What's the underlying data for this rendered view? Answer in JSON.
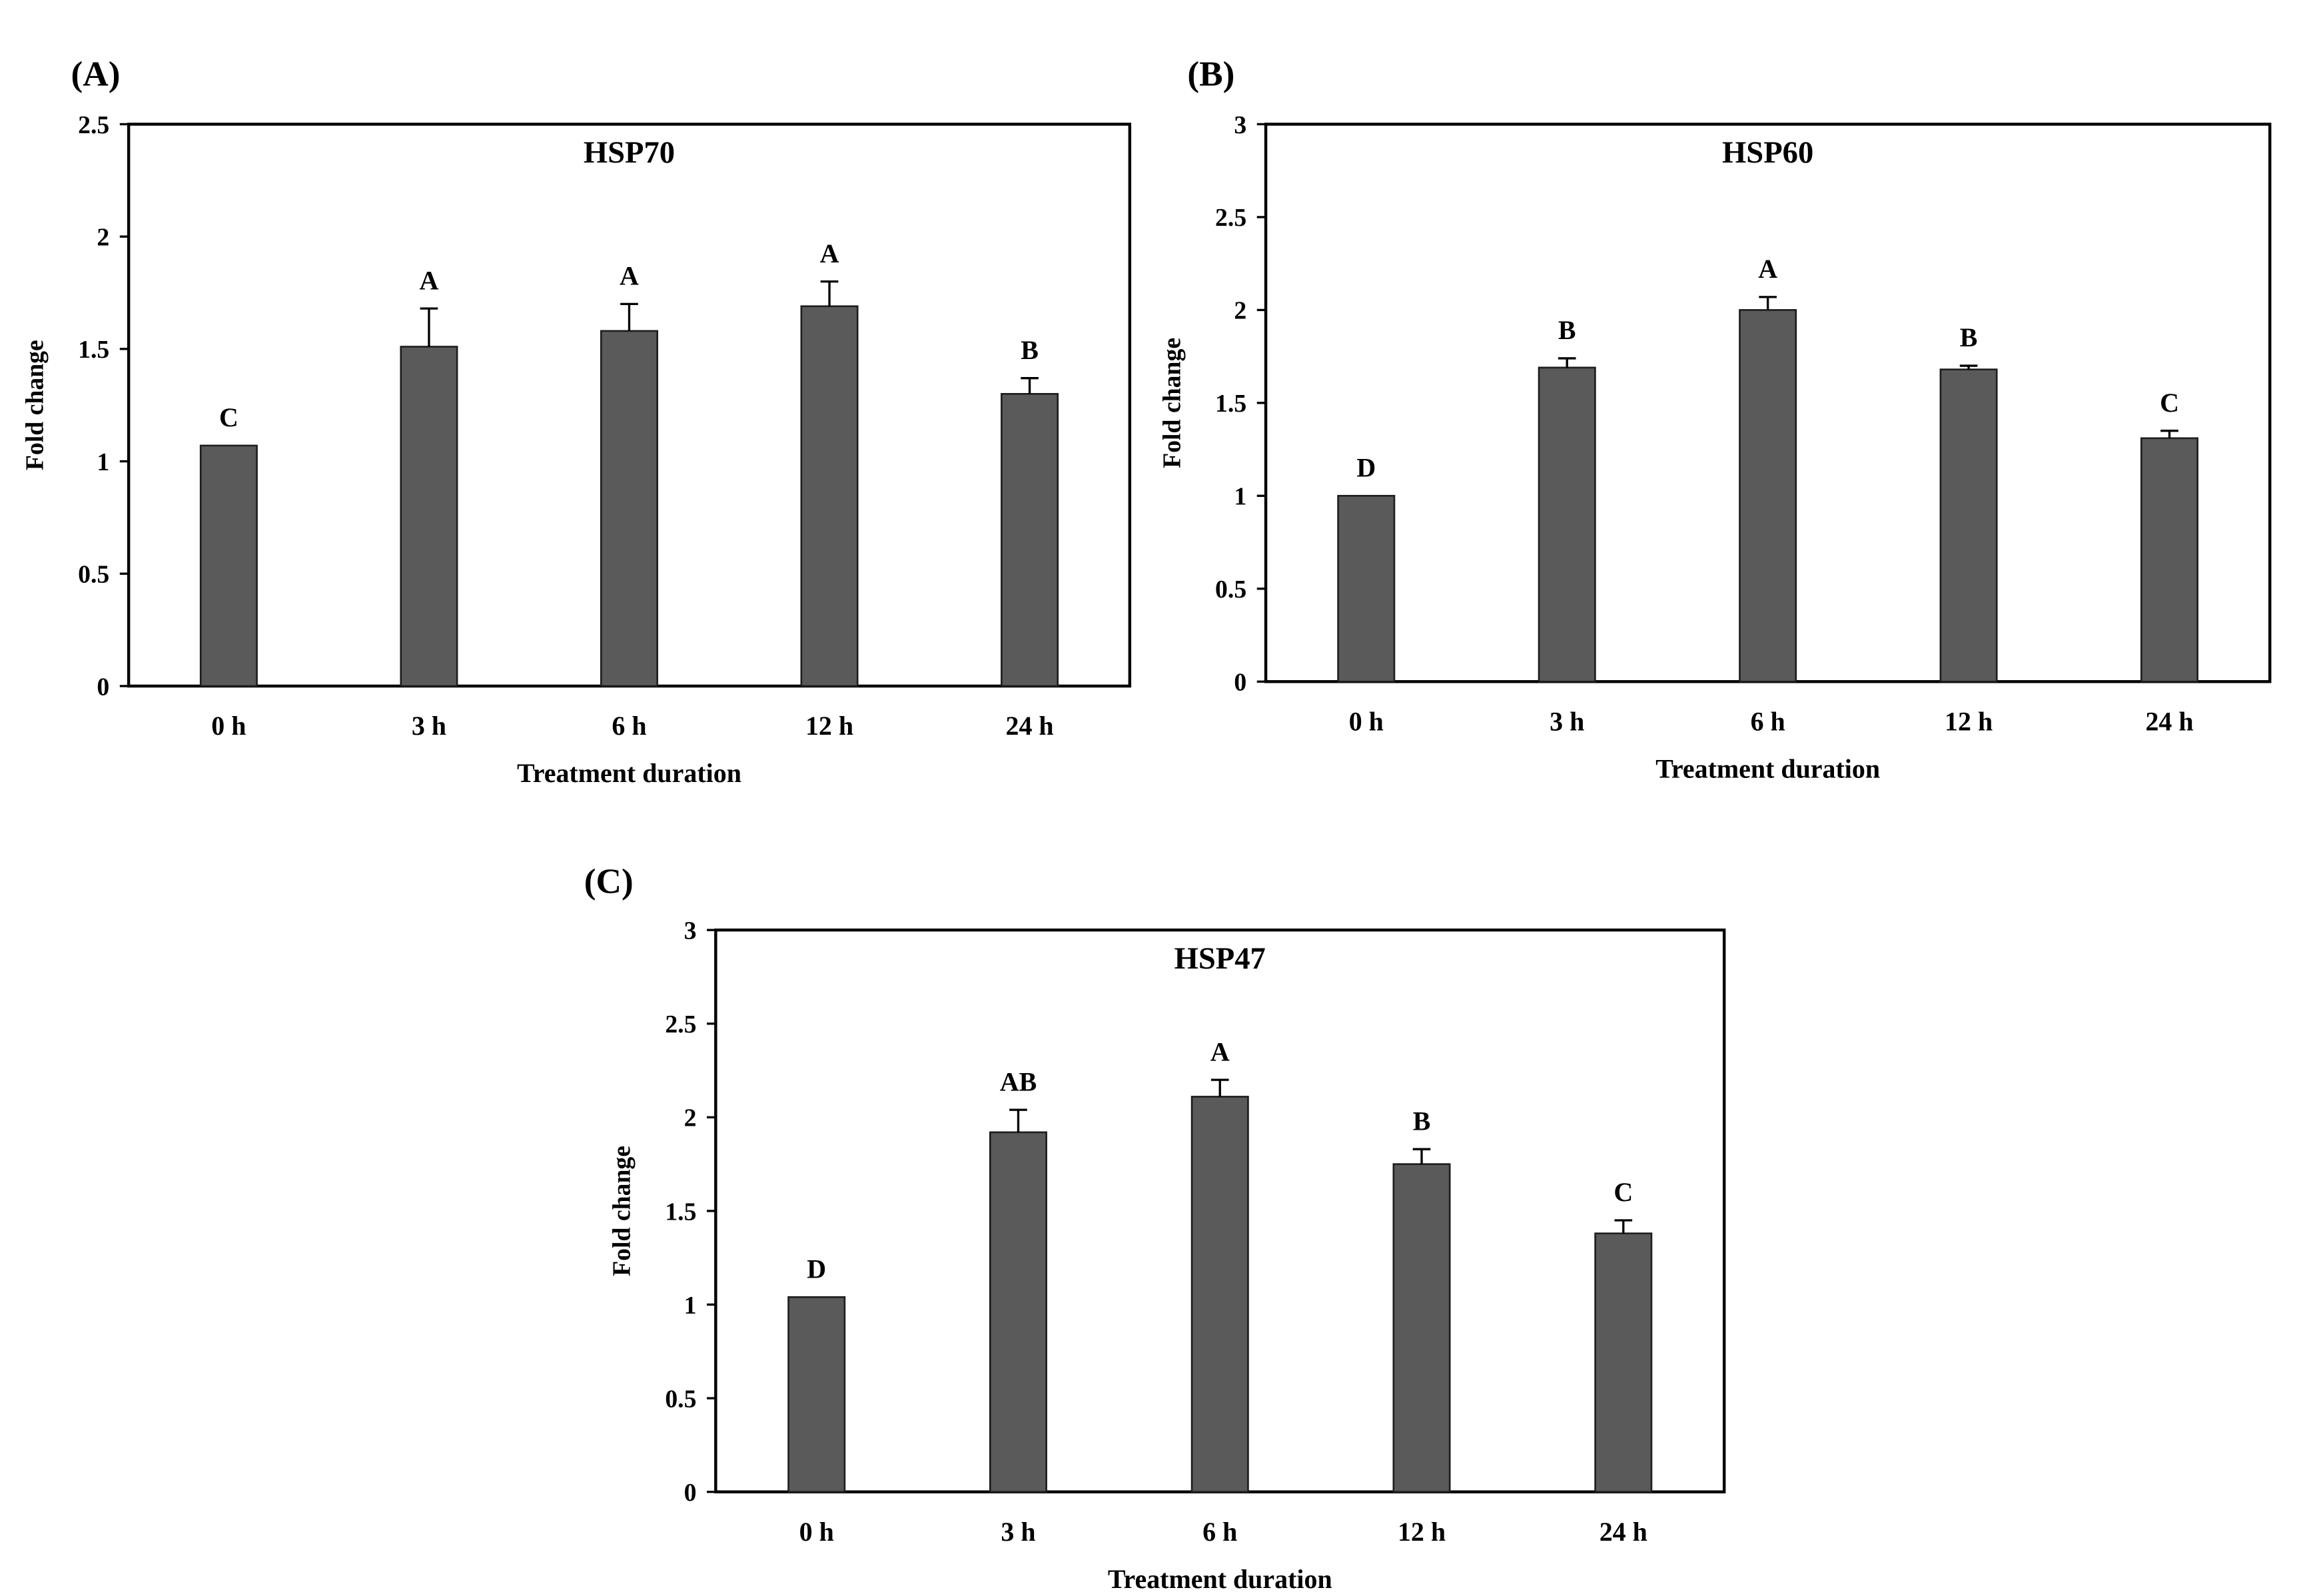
{
  "figure": {
    "bar_color": "#5a5a5a",
    "axis_color": "#000000",
    "background": "#ffffff"
  },
  "chart_data": [
    {
      "panel": "(A)",
      "type": "bar",
      "title": "HSP70",
      "categories": [
        "0 h",
        "3 h",
        "6 h",
        "12 h",
        "24 h"
      ],
      "values": [
        1.07,
        1.51,
        1.58,
        1.69,
        1.3
      ],
      "errors": [
        0.0,
        0.17,
        0.12,
        0.11,
        0.07
      ],
      "letters": [
        "C",
        "A",
        "A",
        "A",
        "B"
      ],
      "xlabel": "Treatment duration",
      "ylabel": "Fold change",
      "ylim": [
        0,
        2.5
      ],
      "yticks": [
        0,
        0.5,
        1,
        1.5,
        2,
        2.5
      ],
      "ytick_labels": [
        "0",
        "0.5",
        "1",
        "1.5",
        "2",
        "2.5"
      ],
      "grid": false
    },
    {
      "panel": "(B)",
      "type": "bar",
      "title": "HSP60",
      "categories": [
        "0 h",
        "3 h",
        "6 h",
        "12 h",
        "24 h"
      ],
      "values": [
        1.0,
        1.69,
        2.0,
        1.68,
        1.31
      ],
      "errors": [
        0.0,
        0.05,
        0.07,
        0.02,
        0.04
      ],
      "letters": [
        "D",
        "B",
        "A",
        "B",
        "C"
      ],
      "xlabel": "Treatment duration",
      "ylabel": "Fold change",
      "ylim": [
        0,
        3
      ],
      "yticks": [
        0,
        0.5,
        1,
        1.5,
        2,
        2.5,
        3
      ],
      "ytick_labels": [
        "0",
        "0.5",
        "1",
        "1.5",
        "2",
        "2.5",
        "3"
      ],
      "grid": false
    },
    {
      "panel": "(C)",
      "type": "bar",
      "title": "HSP47",
      "categories": [
        "0 h",
        "3 h",
        "6 h",
        "12 h",
        "24 h"
      ],
      "values": [
        1.04,
        1.92,
        2.11,
        1.75,
        1.38
      ],
      "errors": [
        0.0,
        0.12,
        0.09,
        0.08,
        0.07
      ],
      "letters": [
        "D",
        "AB",
        "A",
        "B",
        "C"
      ],
      "xlabel": "Treatment duration",
      "ylabel": "Fold change",
      "ylim": [
        0,
        3
      ],
      "yticks": [
        0,
        0.5,
        1,
        1.5,
        2,
        2.5,
        3
      ],
      "ytick_labels": [
        "0",
        "0.5",
        "1",
        "1.5",
        "2",
        "2.5",
        "3"
      ],
      "grid": false
    }
  ]
}
